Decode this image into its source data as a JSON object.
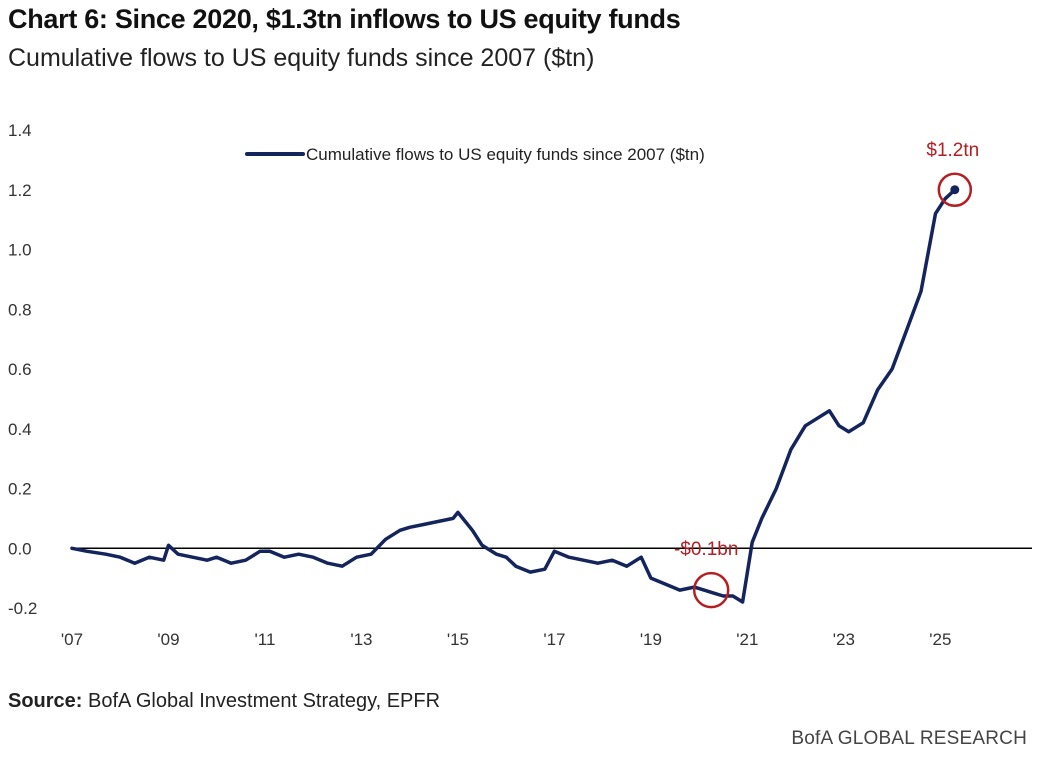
{
  "header": {
    "title": "Chart 6: Since 2020, $1.3tn inflows to US equity funds",
    "subtitle": "Cumulative flows to US equity funds since 2007 ($tn)"
  },
  "footer": {
    "source_label": "Source:",
    "source_text": "BofA Global Investment Strategy, EPFR",
    "brand": "BofA GLOBAL RESEARCH"
  },
  "colors": {
    "series": "#14245c",
    "annotation": "#b41f24",
    "zero_line": "#000000"
  },
  "chart_data": {
    "type": "line",
    "title": "Chart 6: Since 2020, $1.3tn inflows to US equity funds",
    "subtitle": "Cumulative flows to US equity funds since 2007 ($tn)",
    "xlabel": "",
    "ylabel": "",
    "xlim": [
      2007,
      2026.9
    ],
    "ylim": [
      -0.2,
      1.4
    ],
    "yticks": [
      1.4,
      1.2,
      1.0,
      0.8,
      0.6,
      0.4,
      0.2,
      0.0,
      -0.2
    ],
    "ytick_labels": [
      "1.4",
      "1.2",
      "1.0",
      "0.8",
      "0.6",
      "0.4",
      "0.2",
      "0.0",
      "-0.2"
    ],
    "xticks": [
      2007,
      2009,
      2011,
      2013,
      2015,
      2017,
      2019,
      2021,
      2023,
      2025
    ],
    "xtick_labels": [
      "'07",
      "'09",
      "'11",
      "'13",
      "'15",
      "'17",
      "'19",
      "'21",
      "'23",
      "'25"
    ],
    "grid": false,
    "legend_position": "top",
    "series": [
      {
        "name": "Cumulative flows to US equity funds since 2007 ($tn)",
        "x": [
          2007.0,
          2007.3,
          2007.7,
          2008.0,
          2008.3,
          2008.6,
          2008.9,
          2009.0,
          2009.2,
          2009.5,
          2009.8,
          2010.0,
          2010.3,
          2010.6,
          2010.9,
          2011.1,
          2011.4,
          2011.7,
          2012.0,
          2012.3,
          2012.6,
          2012.9,
          2013.2,
          2013.5,
          2013.8,
          2014.0,
          2014.3,
          2014.6,
          2014.9,
          2015.0,
          2015.3,
          2015.5,
          2015.8,
          2016.0,
          2016.2,
          2016.5,
          2016.8,
          2017.0,
          2017.3,
          2017.6,
          2017.9,
          2018.2,
          2018.5,
          2018.8,
          2019.0,
          2019.3,
          2019.6,
          2019.9,
          2020.1,
          2020.3,
          2020.5,
          2020.7,
          2020.9,
          2021.1,
          2021.3,
          2021.6,
          2021.9,
          2022.2,
          2022.5,
          2022.7,
          2022.9,
          2023.1,
          2023.4,
          2023.7,
          2024.0,
          2024.3,
          2024.6,
          2024.9,
          2025.1,
          2025.3
        ],
        "values": [
          0.0,
          -0.01,
          -0.02,
          -0.03,
          -0.05,
          -0.03,
          -0.04,
          0.01,
          -0.02,
          -0.03,
          -0.04,
          -0.03,
          -0.05,
          -0.04,
          -0.01,
          -0.01,
          -0.03,
          -0.02,
          -0.03,
          -0.05,
          -0.06,
          -0.03,
          -0.02,
          0.03,
          0.06,
          0.07,
          0.08,
          0.09,
          0.1,
          0.12,
          0.06,
          0.01,
          -0.02,
          -0.03,
          -0.06,
          -0.08,
          -0.07,
          -0.01,
          -0.03,
          -0.04,
          -0.05,
          -0.04,
          -0.06,
          -0.03,
          -0.1,
          -0.12,
          -0.14,
          -0.13,
          -0.14,
          -0.15,
          -0.16,
          -0.16,
          -0.18,
          0.02,
          0.1,
          0.2,
          0.33,
          0.41,
          0.44,
          0.46,
          0.41,
          0.39,
          0.42,
          0.53,
          0.6,
          0.73,
          0.86,
          1.12,
          1.17,
          1.2
        ]
      }
    ],
    "annotations": [
      {
        "label": "$1.2tn",
        "x": 2025.3,
        "y": 1.2
      },
      {
        "label": "-$0.1bn",
        "x": 2020.25,
        "y": -0.14
      }
    ]
  }
}
